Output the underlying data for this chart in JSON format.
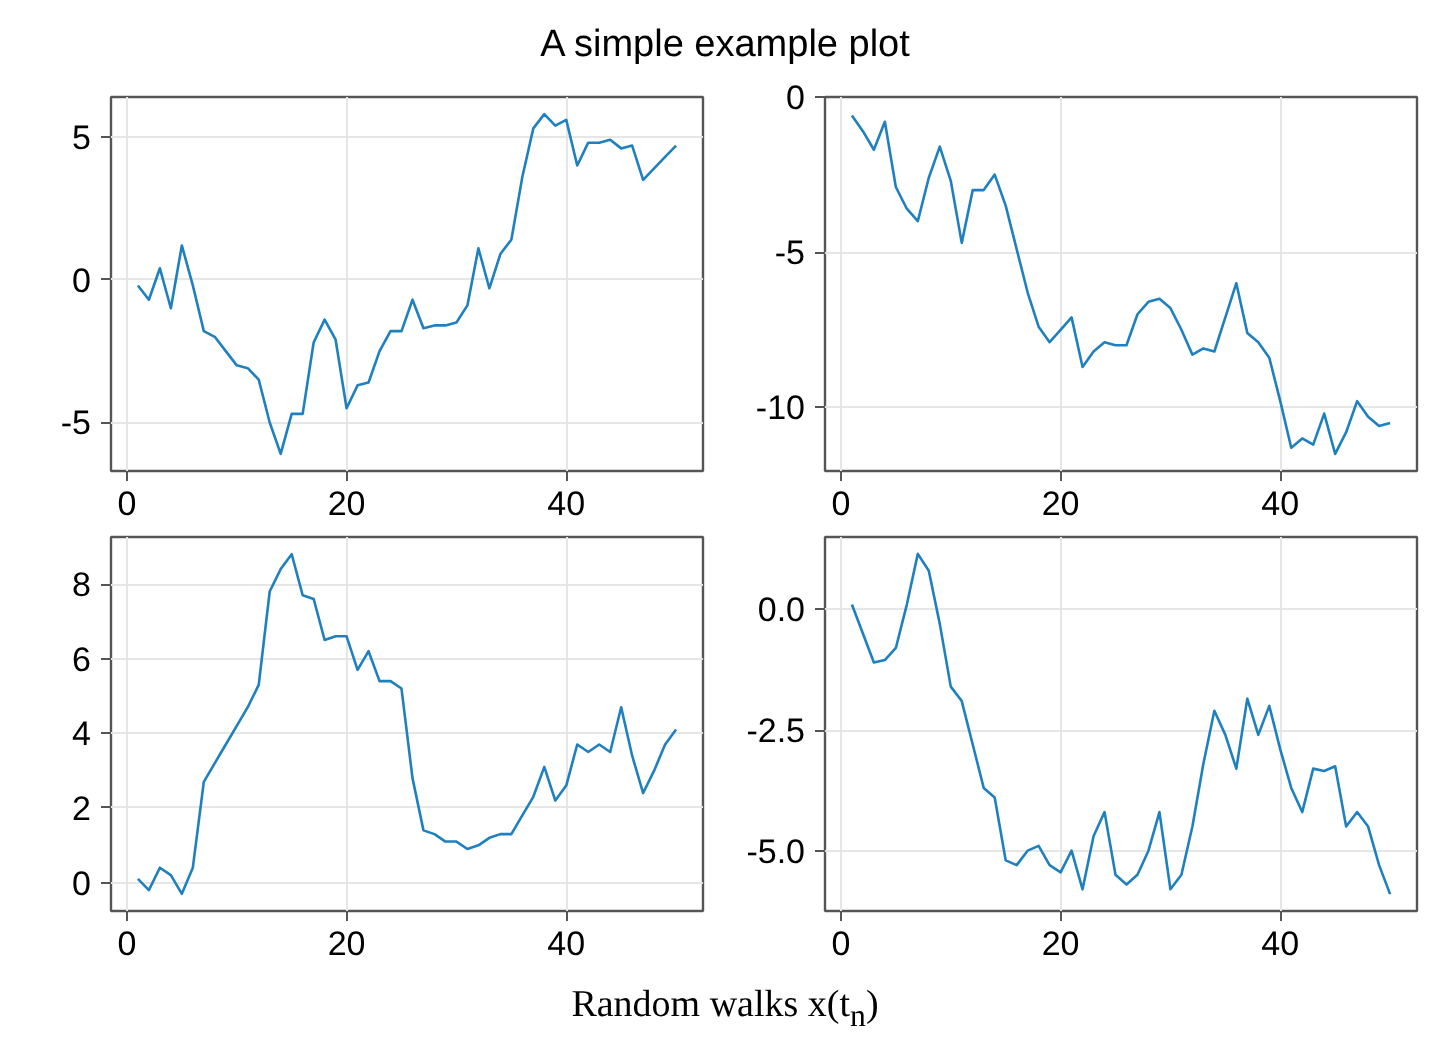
{
  "chart_data": [
    {
      "type": "line",
      "title": "A simple example plot",
      "color": "#1f80c0",
      "grid": true,
      "x": [
        1,
        2,
        3,
        4,
        5,
        6,
        7,
        8,
        9,
        10,
        11,
        12,
        13,
        14,
        15,
        16,
        17,
        18,
        19,
        20,
        21,
        22,
        23,
        24,
        25,
        26,
        27,
        28,
        29,
        30,
        31,
        32,
        33,
        34,
        35,
        36,
        37,
        38,
        39,
        40,
        41,
        42,
        43,
        44,
        45,
        46,
        47,
        48,
        49,
        50
      ],
      "values": [
        -0.2,
        -0.7,
        0.4,
        -1.0,
        1.2,
        -0.2,
        -1.8,
        -2.0,
        -2.5,
        -3.0,
        -3.1,
        -3.5,
        -5.0,
        -6.1,
        -4.7,
        -4.7,
        -2.2,
        -1.4,
        -2.1,
        -4.5,
        -3.7,
        -3.6,
        -2.5,
        -1.8,
        -1.8,
        -0.7,
        -1.7,
        -1.6,
        -1.6,
        -1.5,
        -0.9,
        1.1,
        -0.3,
        0.9,
        1.4,
        3.6,
        5.3,
        5.8,
        5.4,
        5.6,
        4.0,
        4.8,
        4.8,
        4.9,
        4.6,
        4.7,
        3.5,
        3.9,
        4.3,
        4.7
      ],
      "xlim": [
        -1.45,
        52.45
      ],
      "ylim": [
        -6.7,
        6.4
      ],
      "xticks": [
        0,
        20,
        40
      ],
      "yticks": [
        -5,
        0,
        5
      ]
    },
    {
      "type": "line",
      "color": "#1f80c0",
      "grid": true,
      "x": [
        1,
        2,
        3,
        4,
        5,
        6,
        7,
        8,
        9,
        10,
        11,
        12,
        13,
        14,
        15,
        16,
        17,
        18,
        19,
        20,
        21,
        22,
        23,
        24,
        25,
        26,
        27,
        28,
        29,
        30,
        31,
        32,
        33,
        34,
        35,
        36,
        37,
        38,
        39,
        40,
        41,
        42,
        43,
        44,
        45,
        46,
        47,
        48,
        49,
        50
      ],
      "values": [
        -0.6,
        -1.1,
        -1.7,
        -0.8,
        -2.9,
        -3.6,
        -4.0,
        -2.6,
        -1.6,
        -2.7,
        -4.7,
        -3.0,
        -3.0,
        -2.5,
        -3.5,
        -4.9,
        -6.3,
        -7.4,
        -7.9,
        -7.5,
        -7.1,
        -8.7,
        -8.2,
        -7.9,
        -8.0,
        -8.0,
        -7.0,
        -6.6,
        -6.5,
        -6.8,
        -7.5,
        -8.3,
        -8.1,
        -8.2,
        -7.1,
        -6.0,
        -7.6,
        -7.9,
        -8.4,
        -9.8,
        -11.3,
        -11.0,
        -11.2,
        -10.2,
        -11.5,
        -10.8,
        -9.8,
        -10.3,
        -10.6,
        -10.5
      ],
      "xlim": [
        -1.45,
        52.45
      ],
      "ylim": [
        -12.05,
        0
      ],
      "xticks": [
        0,
        20,
        40
      ],
      "yticks": [
        -10,
        -5,
        0
      ]
    },
    {
      "type": "line",
      "color": "#1f80c0",
      "grid": true,
      "x": [
        1,
        2,
        3,
        4,
        5,
        6,
        7,
        8,
        9,
        10,
        11,
        12,
        13,
        14,
        15,
        16,
        17,
        18,
        19,
        20,
        21,
        22,
        23,
        24,
        25,
        26,
        27,
        28,
        29,
        30,
        31,
        32,
        33,
        34,
        35,
        36,
        37,
        38,
        39,
        40,
        41,
        42,
        43,
        44,
        45,
        46,
        47,
        48,
        49,
        50
      ],
      "values": [
        0.1,
        -0.2,
        0.4,
        0.2,
        -0.3,
        0.4,
        2.7,
        3.2,
        3.7,
        4.2,
        4.7,
        5.3,
        7.8,
        8.4,
        8.8,
        7.7,
        7.6,
        6.5,
        6.6,
        6.6,
        5.7,
        6.2,
        5.4,
        5.4,
        5.2,
        2.8,
        1.4,
        1.3,
        1.1,
        1.1,
        0.9,
        1.0,
        1.2,
        1.3,
        1.3,
        1.8,
        2.3,
        3.1,
        2.2,
        2.6,
        3.7,
        3.5,
        3.7,
        3.5,
        4.7,
        3.4,
        2.4,
        3.0,
        3.7,
        4.1
      ],
      "xlim": [
        -1.45,
        52.45
      ],
      "ylim": [
        -0.76,
        9.26
      ],
      "xticks": [
        0,
        20,
        40
      ],
      "yticks": [
        0,
        2,
        4,
        6,
        8
      ]
    },
    {
      "type": "line",
      "color": "#1f80c0",
      "grid": true,
      "xlabel": "Random walks x(t$_{n}$)",
      "x": [
        1,
        2,
        3,
        4,
        5,
        6,
        7,
        8,
        9,
        10,
        11,
        12,
        13,
        14,
        15,
        16,
        17,
        18,
        19,
        20,
        21,
        22,
        23,
        24,
        25,
        26,
        27,
        28,
        29,
        30,
        31,
        32,
        33,
        34,
        35,
        36,
        37,
        38,
        39,
        40,
        41,
        42,
        43,
        44,
        45,
        46,
        47,
        48,
        49,
        50
      ],
      "values": [
        0.1,
        -0.5,
        -1.1,
        -1.05,
        -0.8,
        0.1,
        1.15,
        0.8,
        -0.3,
        -1.6,
        -1.9,
        -2.8,
        -3.7,
        -3.9,
        -5.2,
        -5.3,
        -5.0,
        -4.9,
        -5.3,
        -5.45,
        -5.0,
        -5.8,
        -4.7,
        -4.2,
        -5.5,
        -5.7,
        -5.5,
        -5.0,
        -4.2,
        -5.8,
        -5.5,
        -4.5,
        -3.2,
        -2.1,
        -2.6,
        -3.3,
        -1.85,
        -2.6,
        -2.0,
        -2.9,
        -3.7,
        -4.2,
        -3.3,
        -3.35,
        -3.25,
        -4.5,
        -4.2,
        -4.5,
        -5.3,
        -5.9
      ],
      "xlim": [
        -1.45,
        52.45
      ],
      "ylim": [
        -6.25,
        1.5
      ],
      "xticks": [
        0,
        20,
        40
      ],
      "yticks": [
        {
          "value": -5,
          "label": "-5.0"
        },
        {
          "value": -2.5,
          "label": "-2.5"
        },
        {
          "value": 0,
          "label": "0.0"
        }
      ]
    }
  ]
}
